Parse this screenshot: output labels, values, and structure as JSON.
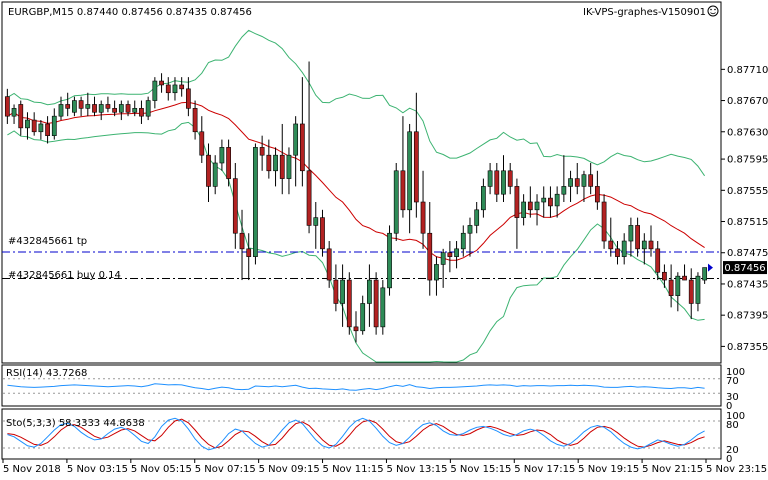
{
  "header": {
    "symbol_line": "EURGBP,M15  0.87440 0.87456 0.87435 0.87456",
    "brand": "IK-VPS-graphes-V150901"
  },
  "orders": {
    "tp_label": "#432845661 tp",
    "buy_label": "#432845661 buy 0.14"
  },
  "current_price": "0.87456",
  "colors": {
    "bull": "#2e8b57",
    "bear": "#b22222",
    "ma": "#cc0000",
    "bands": "#3cb371",
    "tp_line": "#0000cd",
    "buy_line": "#000000",
    "rsi": "#1e90ff",
    "stoch_main": "#1e90ff",
    "stoch_signal": "#cc0000",
    "price_box": "#000000"
  },
  "icons": {
    "smiley": "smiley-icon"
  },
  "rsi_panel": {
    "label": "RSI(14) 43.7268",
    "ticks": [
      "100",
      "70",
      "30",
      "0"
    ]
  },
  "stoch_panel": {
    "label": "Sto(5,3,3) 58.3333 44.8638",
    "ticks": [
      "100",
      "80",
      "20",
      "0"
    ]
  },
  "chart_data": {
    "type": "candlestick",
    "title": "EURGBP,M15",
    "ylim": [
      0.87335,
      0.87795
    ],
    "y_ticks": [
      "0.87710",
      "0.87670",
      "0.87630",
      "0.87595",
      "0.87555",
      "0.87515",
      "0.87475",
      "0.87435",
      "0.87395",
      "0.87355"
    ],
    "x_ticks": [
      "5 Nov 2018",
      "5 Nov 03:15",
      "5 Nov 05:15",
      "5 Nov 07:15",
      "5 Nov 09:15",
      "5 Nov 11:15",
      "5 Nov 13:15",
      "5 Nov 15:15",
      "5 Nov 17:15",
      "5 Nov 19:15",
      "5 Nov 21:15",
      "5 Nov 23:15"
    ],
    "tp_level": 0.87476,
    "entry_level": 0.87442,
    "candles": [
      [
        0.87675,
        0.87685,
        0.8764,
        0.8765
      ],
      [
        0.8765,
        0.87665,
        0.8764,
        0.8766
      ],
      [
        0.87665,
        0.8767,
        0.87625,
        0.87635
      ],
      [
        0.87635,
        0.87655,
        0.8762,
        0.87645
      ],
      [
        0.87645,
        0.87655,
        0.87625,
        0.8763
      ],
      [
        0.8763,
        0.87645,
        0.8762,
        0.8764
      ],
      [
        0.8764,
        0.8765,
        0.87615,
        0.87625
      ],
      [
        0.87625,
        0.8766,
        0.8762,
        0.8765
      ],
      [
        0.8765,
        0.87675,
        0.87645,
        0.87665
      ],
      [
        0.87665,
        0.8768,
        0.8765,
        0.8766
      ],
      [
        0.87655,
        0.87675,
        0.8765,
        0.8767
      ],
      [
        0.8767,
        0.87675,
        0.8765,
        0.8766
      ],
      [
        0.8766,
        0.8768,
        0.8765,
        0.87665
      ],
      [
        0.87665,
        0.87675,
        0.8765,
        0.87655
      ],
      [
        0.87655,
        0.8767,
        0.87645,
        0.87665
      ],
      [
        0.87665,
        0.87675,
        0.87655,
        0.8766
      ],
      [
        0.8766,
        0.8767,
        0.8765,
        0.87655
      ],
      [
        0.87655,
        0.8767,
        0.87645,
        0.87665
      ],
      [
        0.87665,
        0.8767,
        0.8765,
        0.87655
      ],
      [
        0.87655,
        0.8767,
        0.8765,
        0.8766
      ],
      [
        0.8766,
        0.8767,
        0.8764,
        0.8765
      ],
      [
        0.8765,
        0.87675,
        0.87645,
        0.8767
      ],
      [
        0.8767,
        0.877,
        0.8766,
        0.87695
      ],
      [
        0.87695,
        0.87705,
        0.8768,
        0.8769
      ],
      [
        0.8769,
        0.877,
        0.8767,
        0.8768
      ],
      [
        0.8768,
        0.877,
        0.8767,
        0.8769
      ],
      [
        0.8769,
        0.877,
        0.87675,
        0.87685
      ],
      [
        0.87685,
        0.877,
        0.8765,
        0.8766
      ],
      [
        0.8766,
        0.8767,
        0.8762,
        0.8763
      ],
      [
        0.8763,
        0.8765,
        0.8759,
        0.876
      ],
      [
        0.876,
        0.87615,
        0.8754,
        0.8756
      ],
      [
        0.8756,
        0.876,
        0.8755,
        0.8759
      ],
      [
        0.8759,
        0.8762,
        0.8758,
        0.8761
      ],
      [
        0.8761,
        0.8762,
        0.8756,
        0.8757
      ],
      [
        0.8757,
        0.8759,
        0.8748,
        0.875
      ],
      [
        0.875,
        0.8753,
        0.8744,
        0.8748
      ],
      [
        0.8748,
        0.875,
        0.8744,
        0.8747
      ],
      [
        0.8747,
        0.87615,
        0.8746,
        0.8761
      ],
      [
        0.8761,
        0.87625,
        0.8758,
        0.876
      ],
      [
        0.876,
        0.8762,
        0.8757,
        0.8758
      ],
      [
        0.8758,
        0.8761,
        0.8756,
        0.876
      ],
      [
        0.876,
        0.8764,
        0.8755,
        0.8757
      ],
      [
        0.8757,
        0.8761,
        0.8755,
        0.876
      ],
      [
        0.876,
        0.8765,
        0.8756,
        0.8764
      ],
      [
        0.8764,
        0.877,
        0.8756,
        0.8758
      ],
      [
        0.8758,
        0.8772,
        0.875,
        0.8751
      ],
      [
        0.8751,
        0.8754,
        0.8748,
        0.8752
      ],
      [
        0.8752,
        0.8753,
        0.8747,
        0.8748
      ],
      [
        0.8748,
        0.8749,
        0.8743,
        0.8744
      ],
      [
        0.8744,
        0.8746,
        0.874,
        0.8741
      ],
      [
        0.8741,
        0.8746,
        0.8738,
        0.8744
      ],
      [
        0.8744,
        0.8745,
        0.8737,
        0.8738
      ],
      [
        0.8738,
        0.874,
        0.8736,
        0.87375
      ],
      [
        0.87375,
        0.8742,
        0.8737,
        0.8741
      ],
      [
        0.8741,
        0.8746,
        0.8738,
        0.8744
      ],
      [
        0.8744,
        0.8745,
        0.8737,
        0.8738
      ],
      [
        0.8738,
        0.8744,
        0.8737,
        0.8743
      ],
      [
        0.8743,
        0.8751,
        0.8742,
        0.875
      ],
      [
        0.875,
        0.8759,
        0.8749,
        0.8758
      ],
      [
        0.8758,
        0.8765,
        0.8752,
        0.8753
      ],
      [
        0.8753,
        0.8764,
        0.875,
        0.8763
      ],
      [
        0.8763,
        0.8768,
        0.8752,
        0.8754
      ],
      [
        0.8754,
        0.8758,
        0.8748,
        0.875
      ],
      [
        0.875,
        0.8754,
        0.8742,
        0.8744
      ],
      [
        0.8744,
        0.8747,
        0.8742,
        0.8746
      ],
      [
        0.8746,
        0.8748,
        0.8743,
        0.87475
      ],
      [
        0.87475,
        0.8749,
        0.8745,
        0.8747
      ],
      [
        0.8747,
        0.8749,
        0.87455,
        0.8748
      ],
      [
        0.8748,
        0.8751,
        0.8747,
        0.875
      ],
      [
        0.875,
        0.8752,
        0.8747,
        0.8751
      ],
      [
        0.8751,
        0.8754,
        0.875,
        0.8753
      ],
      [
        0.8753,
        0.8757,
        0.8752,
        0.8756
      ],
      [
        0.8756,
        0.8759,
        0.8755,
        0.8758
      ],
      [
        0.8758,
        0.8759,
        0.8754,
        0.8755
      ],
      [
        0.8755,
        0.876,
        0.8754,
        0.8758
      ],
      [
        0.8758,
        0.8759,
        0.8755,
        0.8756
      ],
      [
        0.8756,
        0.8757,
        0.8748,
        0.8752
      ],
      [
        0.8752,
        0.8755,
        0.8751,
        0.8754
      ],
      [
        0.8754,
        0.8756,
        0.8752,
        0.8753
      ],
      [
        0.8753,
        0.8755,
        0.8751,
        0.8754
      ],
      [
        0.8754,
        0.8756,
        0.8752,
        0.87545
      ],
      [
        0.87545,
        0.8756,
        0.8752,
        0.87535
      ],
      [
        0.87535,
        0.8756,
        0.8752,
        0.8755
      ],
      [
        0.8755,
        0.876,
        0.8754,
        0.8756
      ],
      [
        0.8756,
        0.8758,
        0.8754,
        0.8757
      ],
      [
        0.8757,
        0.8759,
        0.8755,
        0.8756
      ],
      [
        0.8756,
        0.8758,
        0.8754,
        0.87575
      ],
      [
        0.87575,
        0.8759,
        0.8755,
        0.8756
      ],
      [
        0.8756,
        0.8758,
        0.8753,
        0.8754
      ],
      [
        0.8754,
        0.8755,
        0.8748,
        0.8749
      ],
      [
        0.8749,
        0.8752,
        0.8747,
        0.8748
      ],
      [
        0.8748,
        0.8749,
        0.8746,
        0.8747
      ],
      [
        0.8747,
        0.875,
        0.8746,
        0.8749
      ],
      [
        0.8749,
        0.8752,
        0.8747,
        0.8751
      ],
      [
        0.8751,
        0.8752,
        0.8747,
        0.8748
      ],
      [
        0.8748,
        0.875,
        0.8746,
        0.8749
      ],
      [
        0.8749,
        0.8751,
        0.8747,
        0.8748
      ],
      [
        0.8748,
        0.8749,
        0.8744,
        0.8745
      ],
      [
        0.8745,
        0.8746,
        0.8743,
        0.8744
      ],
      [
        0.8744,
        0.8746,
        0.87405,
        0.8742
      ],
      [
        0.8742,
        0.8745,
        0.874,
        0.87445
      ],
      [
        0.87445,
        0.8746,
        0.8744,
        0.8744
      ],
      [
        0.8744,
        0.87455,
        0.8739,
        0.8741
      ],
      [
        0.8741,
        0.8745,
        0.874,
        0.87445
      ],
      [
        0.8744,
        0.87456,
        0.87435,
        0.87456
      ]
    ],
    "ma_period": 20,
    "bands": {
      "period": 20,
      "deviations": 2
    },
    "rsi": {
      "ylim": [
        0,
        100
      ],
      "levels": [
        70,
        30
      ],
      "values": [
        52,
        50,
        48,
        47,
        46,
        47,
        48,
        49,
        51,
        52,
        53,
        52,
        51,
        50,
        49,
        48,
        49,
        50,
        51,
        50,
        48,
        51,
        56,
        55,
        53,
        54,
        53,
        49,
        45,
        43,
        40,
        44,
        47,
        45,
        41,
        40,
        41,
        50,
        49,
        48,
        50,
        48,
        50,
        52,
        47,
        43,
        44,
        42,
        41,
        40,
        42,
        39,
        38,
        41,
        43,
        40,
        43,
        48,
        52,
        49,
        54,
        48,
        46,
        43,
        45,
        46,
        46,
        47,
        48,
        49,
        50,
        52,
        53,
        52,
        53,
        52,
        49,
        51,
        50,
        51,
        51,
        50,
        51,
        51,
        52,
        51,
        52,
        51,
        50,
        47,
        46,
        46,
        48,
        49,
        47,
        48,
        47,
        45,
        44,
        43,
        45,
        45,
        43,
        46,
        44
      ]
    },
    "stochastic": {
      "ylim": [
        0,
        100
      ],
      "levels": [
        80,
        20
      ],
      "main": [
        50,
        45,
        35,
        25,
        22,
        30,
        45,
        60,
        72,
        75,
        68,
        55,
        45,
        38,
        40,
        52,
        62,
        66,
        60,
        48,
        35,
        30,
        45,
        68,
        82,
        86,
        80,
        62,
        40,
        24,
        16,
        20,
        34,
        52,
        62,
        58,
        44,
        30,
        22,
        26,
        42,
        60,
        76,
        82,
        74,
        56,
        38,
        25,
        20,
        28,
        46,
        66,
        80,
        86,
        80,
        64,
        46,
        32,
        26,
        30,
        44,
        60,
        72,
        76,
        70,
        58,
        50,
        48,
        52,
        60,
        66,
        68,
        64,
        58,
        50,
        46,
        50,
        58,
        62,
        58,
        48,
        36,
        28,
        24,
        30,
        42,
        56,
        66,
        70,
        66,
        56,
        42,
        30,
        22,
        18,
        22,
        30,
        38,
        34,
        28,
        24,
        28,
        38,
        50,
        58
      ],
      "signal": [
        52,
        50,
        44,
        36,
        28,
        26,
        32,
        45,
        60,
        70,
        72,
        66,
        56,
        46,
        41,
        44,
        52,
        60,
        63,
        58,
        48,
        38,
        36,
        48,
        66,
        80,
        84,
        76,
        60,
        42,
        28,
        20,
        24,
        36,
        50,
        58,
        56,
        46,
        34,
        26,
        28,
        42,
        60,
        74,
        78,
        70,
        54,
        38,
        26,
        24,
        32,
        48,
        66,
        78,
        82,
        76,
        62,
        46,
        34,
        30,
        34,
        46,
        60,
        70,
        74,
        68,
        58,
        50,
        48,
        52,
        60,
        66,
        68,
        64,
        58,
        52,
        48,
        50,
        56,
        60,
        58,
        50,
        38,
        30,
        26,
        30,
        42,
        56,
        66,
        68,
        64,
        54,
        42,
        32,
        24,
        22,
        26,
        32,
        36,
        32,
        28,
        27,
        32,
        40,
        45
      ]
    }
  }
}
